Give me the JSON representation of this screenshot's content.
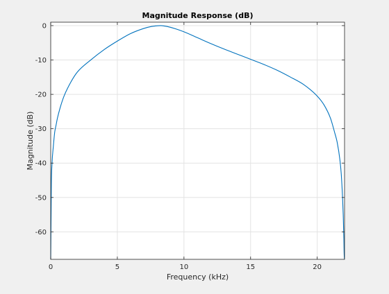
{
  "chart_data": {
    "type": "line",
    "title": "Magnitude Response (dB)",
    "xlabel": "Frequency (kHz)",
    "ylabel": "Magnitude (dB)",
    "xlim": [
      0,
      22.05
    ],
    "ylim": [
      -68,
      1
    ],
    "xticks": [
      0,
      5,
      10,
      15,
      20
    ],
    "yticks": [
      0,
      -10,
      -20,
      -30,
      -40,
      -50,
      -60
    ],
    "grid": true,
    "series": [
      {
        "color": "#0072bd",
        "x": [
          0,
          0.05,
          0.1,
          0.2,
          0.3,
          0.4,
          0.5,
          0.7,
          1,
          1.5,
          2,
          3,
          4,
          5,
          6,
          7,
          7.5,
          8,
          8.25,
          8.5,
          9,
          10,
          11,
          12,
          13,
          14,
          15,
          16,
          17,
          18,
          19,
          20,
          20.5,
          21,
          21.3,
          21.5,
          21.7,
          21.8,
          21.9,
          21.95,
          22,
          22.03,
          22.05
        ],
        "y": [
          -68,
          -46,
          -40,
          -35,
          -31,
          -29,
          -27,
          -24,
          -20.5,
          -16.5,
          -13.5,
          -10,
          -7,
          -4.5,
          -2.3,
          -0.8,
          -0.3,
          -0.05,
          0,
          -0.1,
          -0.5,
          -1.8,
          -3.5,
          -5.2,
          -6.8,
          -8.3,
          -9.8,
          -11.3,
          -13,
          -15,
          -17.2,
          -20.5,
          -23,
          -27,
          -31,
          -34,
          -39,
          -43,
          -50,
          -55,
          -62,
          -68,
          -68
        ]
      }
    ]
  }
}
